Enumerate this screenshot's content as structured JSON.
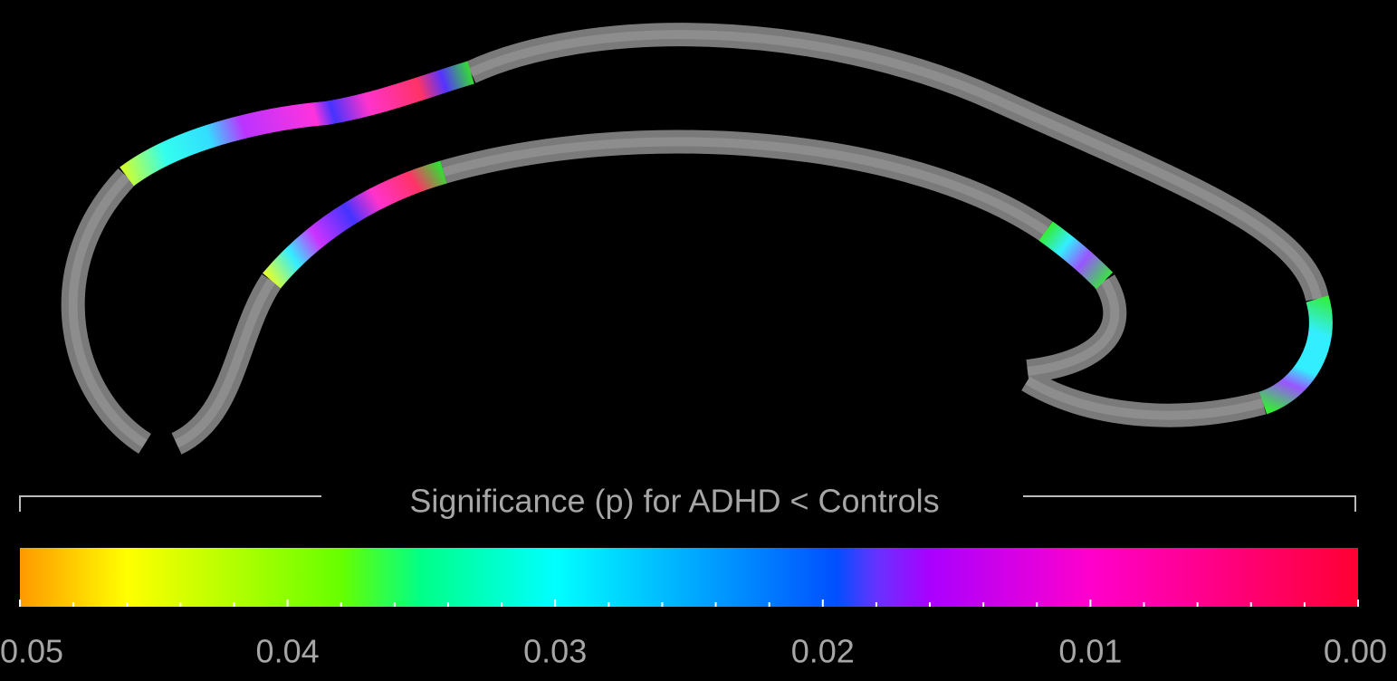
{
  "chart_data": {
    "type": "colorbar",
    "title": "Significance (p) for ADHD < Controls",
    "xlim": [
      0.05,
      0
    ],
    "xticks": [
      0.05,
      0.04,
      0.03,
      0.02,
      0.01,
      {
        "value": 0,
        "label": "0.00"
      }
    ],
    "minor_xticks": [
      0.048,
      0.046,
      0.044,
      0.042,
      0.038,
      0.036,
      0.034,
      0.032,
      0.028,
      0.026,
      0.024,
      0.022,
      0.018,
      0.016,
      0.014,
      0.012,
      0.008,
      0.006,
      0.004,
      0.002
    ],
    "colorscale": [
      {
        "value": 0.05,
        "color": "#ff9900"
      },
      {
        "value": 0.046,
        "color": "#ffff00"
      },
      {
        "value": 0.038,
        "color": "#66ff00"
      },
      {
        "value": 0.035,
        "color": "#00ff88"
      },
      {
        "value": 0.03,
        "color": "#00ffff"
      },
      {
        "value": 0.0195,
        "color": "#0050ff"
      },
      {
        "value": 0.018,
        "color": "#6633ff"
      },
      {
        "value": 0.016,
        "color": "#aa00ff"
      },
      {
        "value": 0.01,
        "color": "#ff00cc"
      },
      {
        "value": 0,
        "color": "#ff0033"
      }
    ]
  }
}
